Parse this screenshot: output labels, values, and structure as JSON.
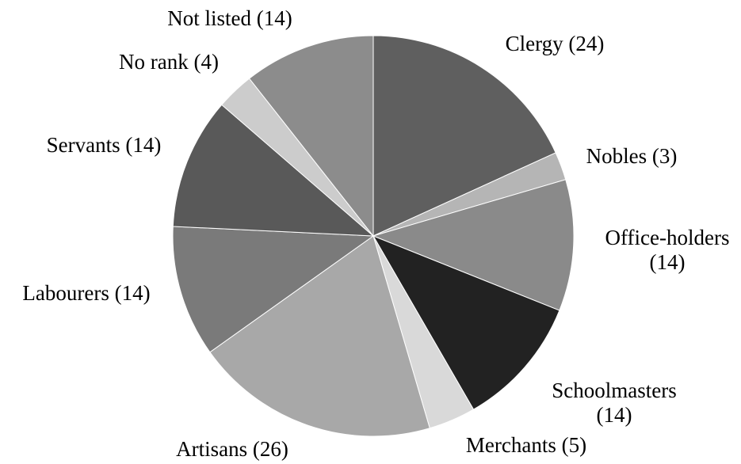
{
  "chart_data": {
    "type": "pie",
    "title": "",
    "start_angle_deg": 0,
    "direction": "clockwise",
    "slices": [
      {
        "name": "Clergy",
        "value": 24,
        "color": "#5f5f5f",
        "label_lines": [
          "Clergy (24)"
        ]
      },
      {
        "name": "Nobles",
        "value": 3,
        "color": "#b5b5b5",
        "label_lines": [
          "Nobles (3)"
        ]
      },
      {
        "name": "Office-holders",
        "value": 14,
        "color": "#8a8a8a",
        "label_lines": [
          "Office-holders",
          "(14)"
        ]
      },
      {
        "name": "Schoolmasters",
        "value": 14,
        "color": "#222222",
        "label_lines": [
          "Schoolmasters",
          "(14)"
        ]
      },
      {
        "name": "Merchants",
        "value": 5,
        "color": "#d9d9d9",
        "label_lines": [
          "Merchants (5)"
        ]
      },
      {
        "name": "Artisans",
        "value": 26,
        "color": "#a8a8a8",
        "label_lines": [
          "Artisans (26)"
        ]
      },
      {
        "name": "Labourers",
        "value": 14,
        "color": "#7a7a7a",
        "label_lines": [
          "Labourers (14)"
        ]
      },
      {
        "name": "Servants",
        "value": 14,
        "color": "#595959",
        "label_lines": [
          "Servants (14)"
        ]
      },
      {
        "name": "No rank",
        "value": 4,
        "color": "#cccccc",
        "label_lines": [
          "No rank (4)"
        ]
      },
      {
        "name": "Not listed",
        "value": 14,
        "color": "#8c8c8c",
        "label_lines": [
          "Not listed (14)"
        ]
      }
    ]
  }
}
